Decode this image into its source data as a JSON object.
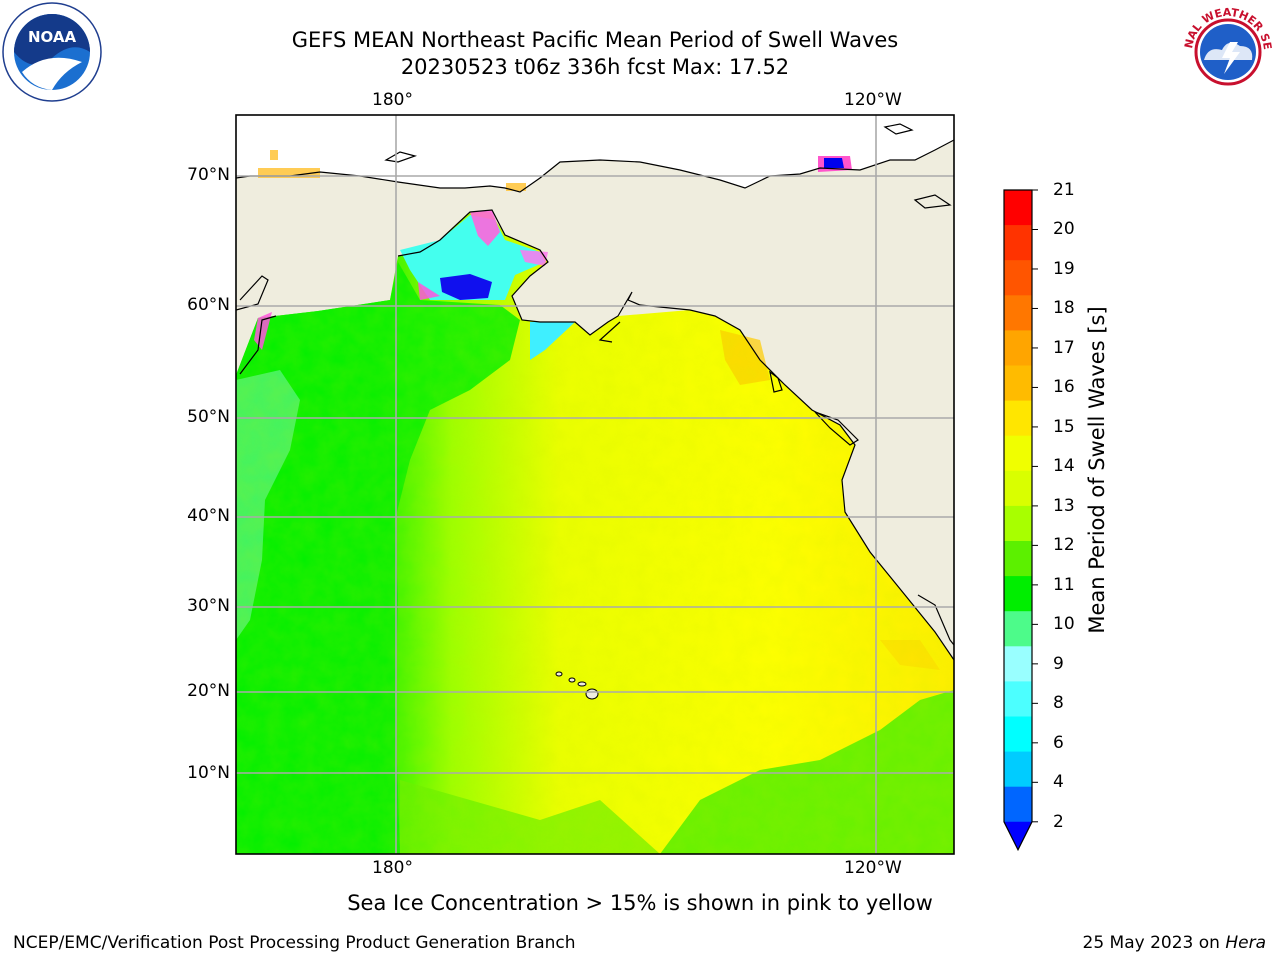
{
  "title": {
    "line1": "GEFS MEAN Northeast Pacific Mean Period of Swell Waves",
    "line2": "20230523 t06z 336h fcst   Max: 17.52"
  },
  "logos": {
    "left": "noaa-logo",
    "right": "national-weather-service-logo",
    "left_text": "NOAA",
    "right_text": "NATIONAL WEATHER SERVICE"
  },
  "map": {
    "top_lon_labels": [
      "180°",
      "120°W"
    ],
    "bottom_lon_labels": [
      "180°",
      "120°W"
    ],
    "lat_labels": [
      "70°N",
      "60°N",
      "50°N",
      "40°N",
      "30°N",
      "20°N",
      "10°N"
    ],
    "land_color": "#efedde",
    "ocean_dominant_colors": [
      "#00ee00",
      "#66ff00",
      "#ccff00",
      "#ffff00",
      "#ffe600"
    ]
  },
  "colorbar": {
    "title": "Mean Period of Swell Waves [s]",
    "ticks": [
      "21",
      "20",
      "19",
      "18",
      "17",
      "16",
      "15",
      "14",
      "13",
      "12",
      "11",
      "10",
      "9",
      "8",
      "6",
      "4",
      "2"
    ],
    "colors": [
      "#ff0000",
      "#ff3300",
      "#ff5500",
      "#ff7700",
      "#ffa500",
      "#ffbb00",
      "#ffe600",
      "#f0ff00",
      "#d9ff00",
      "#a8ff00",
      "#5cf000",
      "#00ee00",
      "#4dfb8a",
      "#99ffff",
      "#4cffff",
      "#00ffff",
      "#00ccff",
      "#0066ff"
    ],
    "extend_color": "#0000ff"
  },
  "note": "Sea Ice Concentration > 15% is shown in pink to yellow",
  "footer": {
    "left": "NCEP/EMC/Verification Post Processing Product Generation Branch",
    "right_prefix": "25 May 2023 on ",
    "right_machine": "Hera"
  }
}
